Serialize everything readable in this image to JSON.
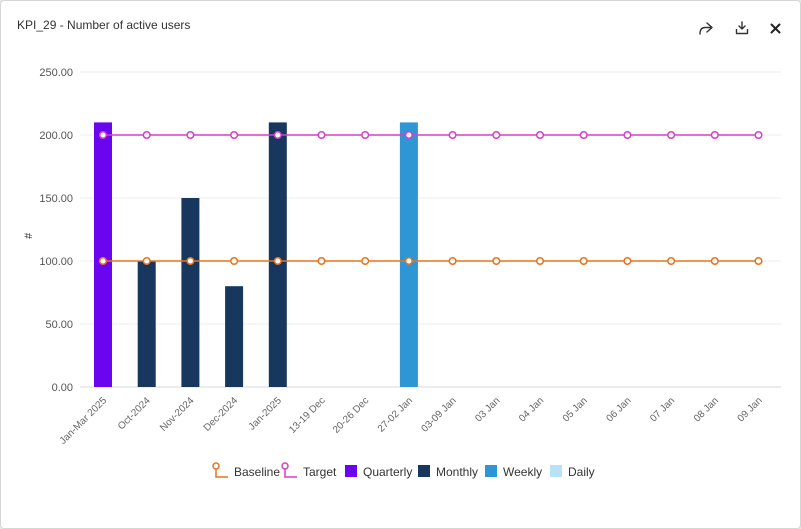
{
  "header": {
    "title": "KPI_29 - Number of active users",
    "share_icon": "share-icon",
    "download_icon": "download-icon",
    "close_icon": "close-icon"
  },
  "colors": {
    "baseline": "#e8731c",
    "target": "#d53fc8",
    "quarterly": "#6a05f0",
    "monthly": "#17375e",
    "weekly": "#2e96d4",
    "daily": "#b9e1f7",
    "grid": "#ececec",
    "tick_text": "#666666"
  },
  "chart_data": {
    "type": "bar",
    "title": "KPI_29 - Number of active users",
    "xlabel": "",
    "ylabel": "#",
    "ylim": [
      0,
      250
    ],
    "yticks": [
      "0.00",
      "50.00",
      "100.00",
      "150.00",
      "200.00",
      "250.00"
    ],
    "ytick_values": [
      0,
      50,
      100,
      150,
      200,
      250
    ],
    "categories": [
      "Jan-Mar 2025",
      "Oct-2024",
      "Nov-2024",
      "Dec-2024",
      "Jan-2025",
      "13-19 Dec",
      "20-26 Dec",
      "27-02 Jan",
      "03-09 Jan",
      "03 Jan",
      "04 Jan",
      "05 Jan",
      "06 Jan",
      "07 Jan",
      "08 Jan",
      "09 Jan"
    ],
    "series": [
      {
        "name": "Quarterly",
        "kind": "bar",
        "color_key": "quarterly",
        "values": [
          210,
          null,
          null,
          null,
          null,
          null,
          null,
          null,
          null,
          null,
          null,
          null,
          null,
          null,
          null,
          null
        ]
      },
      {
        "name": "Monthly",
        "kind": "bar",
        "color_key": "monthly",
        "values": [
          null,
          100,
          150,
          80,
          210,
          null,
          null,
          null,
          null,
          null,
          null,
          null,
          null,
          null,
          null,
          null
        ]
      },
      {
        "name": "Weekly",
        "kind": "bar",
        "color_key": "weekly",
        "values": [
          null,
          null,
          null,
          null,
          null,
          null,
          null,
          210,
          null,
          null,
          null,
          null,
          null,
          null,
          null,
          null
        ]
      },
      {
        "name": "Daily",
        "kind": "bar",
        "color_key": "daily",
        "values": [
          null,
          null,
          null,
          null,
          null,
          null,
          null,
          null,
          null,
          null,
          null,
          null,
          null,
          null,
          null,
          null
        ]
      },
      {
        "name": "Baseline",
        "kind": "line",
        "color_key": "baseline",
        "values": [
          100,
          100,
          100,
          100,
          100,
          100,
          100,
          100,
          100,
          100,
          100,
          100,
          100,
          100,
          100,
          100
        ]
      },
      {
        "name": "Target",
        "kind": "line",
        "color_key": "target",
        "values": [
          200,
          200,
          200,
          200,
          200,
          200,
          200,
          200,
          200,
          200,
          200,
          200,
          200,
          200,
          200,
          200
        ]
      }
    ],
    "legend": {
      "position": "bottom-center",
      "items": [
        {
          "label": "Baseline",
          "kind": "line",
          "color_key": "baseline"
        },
        {
          "label": "Target",
          "kind": "line",
          "color_key": "target"
        },
        {
          "label": "Quarterly",
          "kind": "bar",
          "color_key": "quarterly"
        },
        {
          "label": "Monthly",
          "kind": "bar",
          "color_key": "monthly"
        },
        {
          "label": "Weekly",
          "kind": "bar",
          "color_key": "weekly"
        },
        {
          "label": "Daily",
          "kind": "bar",
          "color_key": "daily"
        }
      ]
    }
  }
}
